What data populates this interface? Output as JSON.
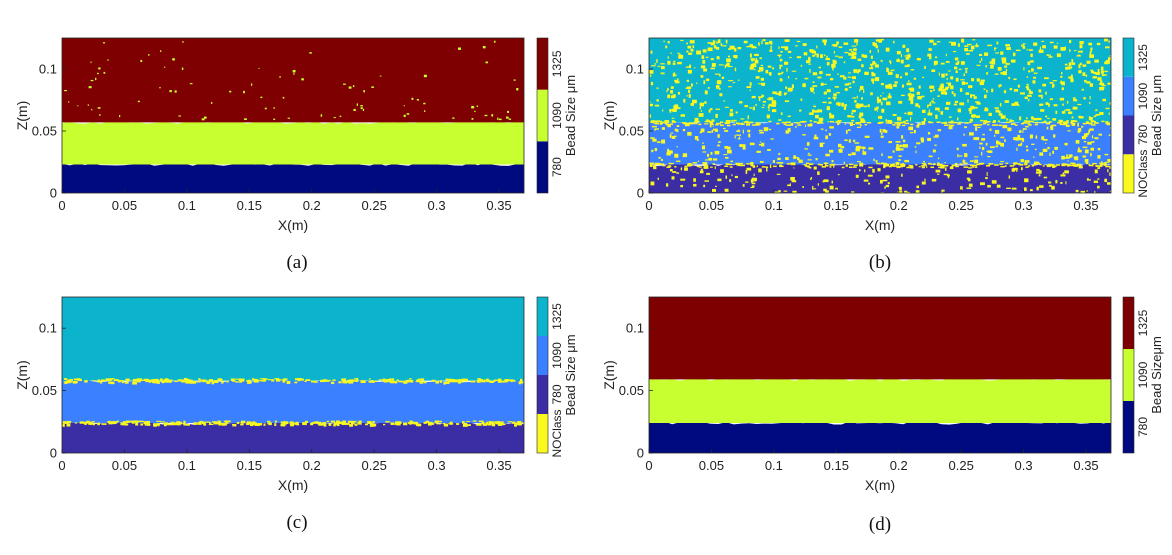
{
  "chart_data": [
    {
      "id": "a",
      "type": "heatmap",
      "caption": "(a)",
      "xlabel": "X(m)",
      "ylabel": "Z(m)",
      "xlim": [
        0,
        0.37
      ],
      "ylim": [
        0,
        0.125
      ],
      "xticks": [
        "0",
        "0.05",
        "0.1",
        "0.15",
        "0.2",
        "0.25",
        "0.3",
        "0.35"
      ],
      "yticks": [
        "0",
        "0.05",
        "0.1"
      ],
      "colorbar_title": "Bead Size μm",
      "classes": [
        {
          "label": "780",
          "color": "#000a80"
        },
        {
          "label": "1090",
          "color": "#c8ff30"
        },
        {
          "label": "1325",
          "color": "#7f0000"
        }
      ],
      "layers": [
        {
          "label": "780",
          "z_min": 0,
          "z_max": 0.023
        },
        {
          "label": "1090",
          "z_min": 0.023,
          "z_max": 0.057
        },
        {
          "label": "1325",
          "z_min": 0.057,
          "z_max": 0.125
        }
      ],
      "speckle": {
        "color": "#c8ff30",
        "density": "low"
      },
      "grid": false,
      "legend": "right"
    },
    {
      "id": "b",
      "type": "heatmap",
      "caption": "(b)",
      "xlabel": "X(m)",
      "ylabel": "Z(m)",
      "xlim": [
        0,
        0.37
      ],
      "ylim": [
        0,
        0.125
      ],
      "xticks": [
        "0",
        "0.05",
        "0.1",
        "0.15",
        "0.2",
        "0.25",
        "0.3",
        "0.35"
      ],
      "yticks": [
        "0",
        "0.05",
        "0.1"
      ],
      "colorbar_title": "Bead Size μm",
      "classes": [
        {
          "label": "NOClass",
          "color": "#f9f81f"
        },
        {
          "label": "780",
          "color": "#3b2ea4"
        },
        {
          "label": "1090",
          "color": "#3a80ff"
        },
        {
          "label": "1325",
          "color": "#0bb4cc"
        }
      ],
      "layers": [
        {
          "label": "780",
          "z_min": 0,
          "z_max": 0.023
        },
        {
          "label": "1090",
          "z_min": 0.023,
          "z_max": 0.057
        },
        {
          "label": "1325",
          "z_min": 0.057,
          "z_max": 0.125
        }
      ],
      "speckle": {
        "color": "#f9f81f",
        "density": "high"
      },
      "grid": false,
      "legend": "right"
    },
    {
      "id": "c",
      "type": "heatmap",
      "caption": "(c)",
      "xlabel": "X(m)",
      "ylabel": "Z(m)",
      "xlim": [
        0,
        0.37
      ],
      "ylim": [
        0,
        0.125
      ],
      "xticks": [
        "0",
        "0.05",
        "0.1",
        "0.15",
        "0.2",
        "0.25",
        "0.3",
        "0.35"
      ],
      "yticks": [
        "0",
        "0.05",
        "0.1"
      ],
      "colorbar_title": "Bead Size μm",
      "classes": [
        {
          "label": "NOClass",
          "color": "#f9f81f"
        },
        {
          "label": "780",
          "color": "#3b2ea4"
        },
        {
          "label": "1090",
          "color": "#3a80ff"
        },
        {
          "label": "1325",
          "color": "#0bb4cc"
        }
      ],
      "layers": [
        {
          "label": "780",
          "z_min": 0,
          "z_max": 0.024
        },
        {
          "label": "1090",
          "z_min": 0.024,
          "z_max": 0.058
        },
        {
          "label": "1325",
          "z_min": 0.058,
          "z_max": 0.125
        }
      ],
      "speckle": {
        "color": "#f9f81f",
        "density": "interface"
      },
      "grid": false,
      "legend": "right"
    },
    {
      "id": "d",
      "type": "heatmap",
      "caption": "(d)",
      "xlabel": "X(m)",
      "ylabel": "Z(m)",
      "xlim": [
        0,
        0.37
      ],
      "ylim": [
        0,
        0.125
      ],
      "xticks": [
        "0",
        "0.05",
        "0.1",
        "0.15",
        "0.2",
        "0.25",
        "0.3",
        "0.35"
      ],
      "yticks": [
        "0",
        "0.05",
        "0.1"
      ],
      "colorbar_title": "Bead Sizeμm",
      "classes": [
        {
          "label": "780",
          "color": "#000a80"
        },
        {
          "label": "1090",
          "color": "#c8ff30"
        },
        {
          "label": "1325",
          "color": "#7f0000"
        }
      ],
      "layers": [
        {
          "label": "780",
          "z_min": 0,
          "z_max": 0.024
        },
        {
          "label": "1090",
          "z_min": 0.024,
          "z_max": 0.059
        },
        {
          "label": "1325",
          "z_min": 0.059,
          "z_max": 0.125
        }
      ],
      "speckle": {
        "color": "#c8ff30",
        "density": "none"
      },
      "grid": false,
      "legend": "right"
    }
  ]
}
